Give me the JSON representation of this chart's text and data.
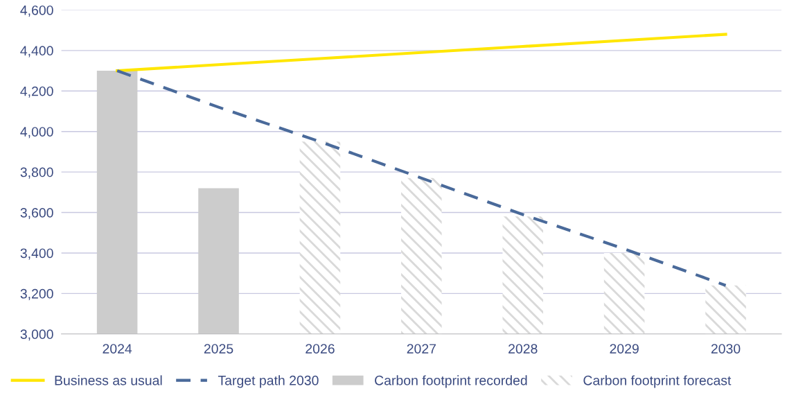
{
  "chart_data": {
    "type": "bar",
    "categories": [
      "2024",
      "2025",
      "2026",
      "2027",
      "2028",
      "2029",
      "2030"
    ],
    "series": [
      {
        "name": "Business as usual",
        "type": "line",
        "color": "#ffe600",
        "line_style": "solid",
        "values": [
          4300,
          4330,
          4360,
          4390,
          4420,
          4450,
          4480
        ]
      },
      {
        "name": "Target path 2030",
        "type": "line",
        "color": "#4a6a9a",
        "line_style": "dashed",
        "values": [
          4300,
          4120,
          3950,
          3770,
          3590,
          3420,
          3240
        ]
      },
      {
        "name": "Carbon footprint recorded",
        "color": "#cccccc",
        "values": [
          4300,
          3720,
          null,
          null,
          null,
          null,
          null
        ]
      },
      {
        "name": "Carbon footprint forecast",
        "color": "#d9d9d9",
        "line_style": "dashed",
        "values": [
          null,
          null,
          3950,
          3770,
          3580,
          3400,
          3240
        ]
      }
    ],
    "ylim": [
      3000,
      4600
    ],
    "yticks": [
      {
        "value": 3000,
        "label": "3,000"
      },
      {
        "value": 3200,
        "label": "3,200"
      },
      {
        "value": 3400,
        "label": "3,400"
      },
      {
        "value": 3600,
        "label": "3,600"
      },
      {
        "value": 3800,
        "label": "3,800"
      },
      {
        "value": 4000,
        "label": "4,000"
      },
      {
        "value": 4200,
        "label": "4,200"
      },
      {
        "value": 4400,
        "label": "4,400"
      },
      {
        "value": 4600,
        "label": "4,600"
      }
    ],
    "grid": "y",
    "legend": "bottom left"
  }
}
